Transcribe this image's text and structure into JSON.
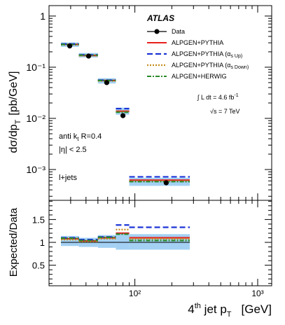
{
  "chart_data": [
    {
      "type": "line",
      "panel": "main",
      "x_scale": "log",
      "y_scale": "log",
      "xlim": [
        20,
        1300
      ],
      "ylim": [
        0.00025,
        1.6
      ],
      "ylabel_main": "dσ/dp",
      "ylabel_sub": "T",
      "ylabel_unit": "[pb/GeV]",
      "y_ticks": [
        {
          "v": 1,
          "label": "1"
        },
        {
          "v": 0.1,
          "label": "10⁻¹"
        },
        {
          "v": 0.01,
          "label": "10⁻²"
        },
        {
          "v": 0.001,
          "label": "10⁻³"
        }
      ],
      "bins": [
        [
          25,
          35
        ],
        [
          35,
          50
        ],
        [
          50,
          70
        ],
        [
          70,
          90
        ],
        [
          90,
          280
        ]
      ],
      "series": [
        {
          "name": "Data",
          "color": "#000000",
          "style": "marker",
          "x": [
            29.5,
            42,
            59,
            80,
            180
          ],
          "values": [
            0.26,
            0.165,
            0.05,
            0.0113,
            0.00055
          ]
        },
        {
          "name": "ALPGEN+PYTHIA",
          "color": "#e8201e",
          "style": "solid",
          "values": [
            0.28,
            0.17,
            0.055,
            0.0138,
            0.00062
          ]
        },
        {
          "name": "ALPGEN+PYTHIA (α_S Up)",
          "color": "#1c34d6",
          "style": "dashed",
          "values": [
            0.285,
            0.175,
            0.056,
            0.0155,
            0.00072
          ]
        },
        {
          "name": "ALPGEN+PYTHIA (α_S Down)",
          "color": "#c88c1c",
          "style": "dotted",
          "values": [
            0.275,
            0.168,
            0.054,
            0.0135,
            0.00059
          ]
        },
        {
          "name": "ALPGEN+HERWIG",
          "color": "#2a8a2a",
          "style": "dashdot",
          "values": [
            0.278,
            0.172,
            0.055,
            0.0132,
            0.00058
          ]
        }
      ],
      "uncertainty_band": {
        "color": "#a4d1f3",
        "lo": [
          0.25,
          0.155,
          0.048,
          0.0118,
          0.00048
        ],
        "hi": [
          0.305,
          0.19,
          0.061,
          0.0162,
          0.00069
        ]
      },
      "legend": {
        "placement": "top-right",
        "header": "ATLAS",
        "entries": [
          "Data",
          "ALPGEN+PYTHIA",
          "ALPGEN+PYTHIA (α",
          "ALPGEN+PYTHIA (α",
          "ALPGEN+HERWIG"
        ],
        "entry_suffix": [
          "",
          "",
          "s Up)",
          "s Down)",
          ""
        ]
      },
      "annotations": {
        "lumi": "∫ L dt = 4.6 fb",
        "lumi_sup": "-1",
        "sqrt_s": "√s = 7 TeV",
        "jet_alg": "anti k",
        "jet_alg_sub": "t",
        "jet_alg_rest": " R=0.4",
        "eta_cut": "|η| < 2.5",
        "channel": "l+jets"
      }
    },
    {
      "type": "line",
      "panel": "ratio",
      "x_scale": "log",
      "xlim": [
        20,
        1300
      ],
      "ylim": [
        0.05,
        1.92
      ],
      "ylabel": "Expected/Data",
      "y_ticks": [
        {
          "v": 0.5,
          "label": "0.5"
        },
        {
          "v": 1,
          "label": "1"
        },
        {
          "v": 1.5,
          "label": "1.5"
        }
      ],
      "x_ticks": [
        {
          "v": 100,
          "label": "10²"
        },
        {
          "v": 1000,
          "label": "10³"
        }
      ],
      "xlabel_pre": "4",
      "xlabel_sup": "th",
      "xlabel_mid": " jet p",
      "xlabel_sub": "T",
      "xlabel_post": "[GeV]",
      "bins": [
        [
          25,
          35
        ],
        [
          35,
          50
        ],
        [
          50,
          70
        ],
        [
          70,
          90
        ],
        [
          90,
          280
        ]
      ],
      "series": [
        {
          "name": "ALPGEN+PYTHIA",
          "color": "#e8201e",
          "style": "solid",
          "values": [
            1.08,
            1.03,
            1.1,
            1.2,
            1.1
          ]
        },
        {
          "name": "ALPGEN+PYTHIA (α_S Up)",
          "color": "#1c34d6",
          "style": "dashed",
          "values": [
            1.1,
            1.06,
            1.12,
            1.38,
            1.33
          ]
        },
        {
          "name": "ALPGEN+PYTHIA (α_S Down)",
          "color": "#c88c1c",
          "style": "dotted",
          "values": [
            1.06,
            1.02,
            1.08,
            1.28,
            1.08
          ]
        },
        {
          "name": "ALPGEN+HERWIG",
          "color": "#2a8a2a",
          "style": "dashdot",
          "values": [
            1.09,
            1.04,
            1.11,
            1.18,
            1.04
          ]
        }
      ],
      "uncertainty_band": {
        "color": "#a4d1f3",
        "lo": [
          0.92,
          0.9,
          0.88,
          0.84,
          0.84
        ],
        "hi": [
          1.14,
          1.1,
          1.16,
          1.22,
          1.18
        ]
      }
    }
  ]
}
